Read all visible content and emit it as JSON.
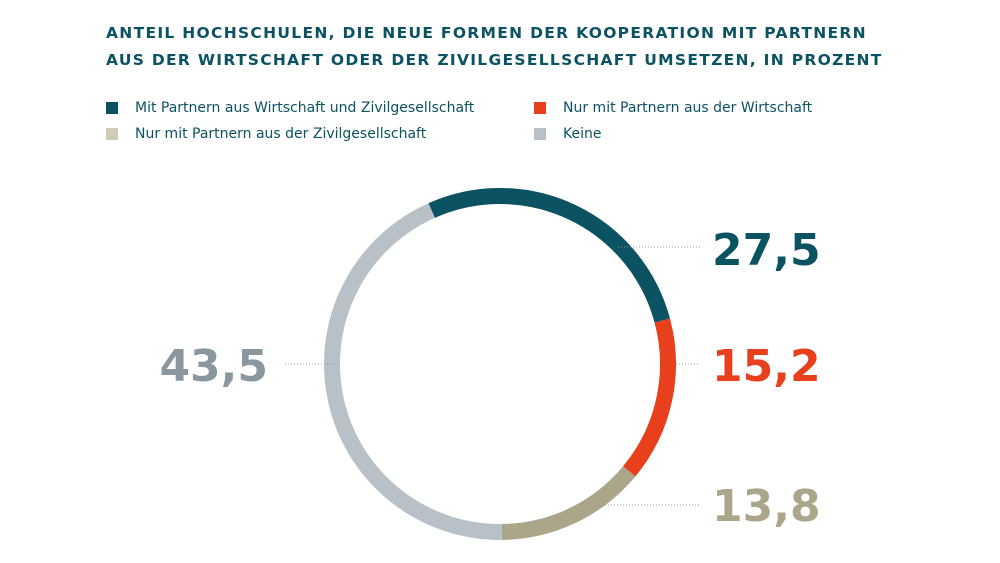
{
  "chart_data": {
    "type": "pie",
    "title": "ANTEIL HOCHSCHULEN, DIE NEUE FORMEN DER KOOPERATION MIT PARTNERN AUS DER WIRTSCHAFT ODER DER ZIVILGESELLSCHAFT UMSETZEN, IN PROZENT",
    "title_lines": [
      "ANTEIL HOCHSCHULEN, DIE NEUE FORMEN DER KOOPERATION MIT PARTNERN",
      "AUS DER WIRTSCHAFT ODER DER ZIVILGESELLSCHAFT UMSETZEN, IN PROZENT"
    ],
    "donut": true,
    "legend_position": "top",
    "series": [
      {
        "name": "Mit Partnern aus Wirtschaft und Zivilgesellschaft",
        "value": 27.5,
        "label": "27,5",
        "color": "#0b5263",
        "legend_color": "#0b5263"
      },
      {
        "name": "Nur mit Partnern aus der Wirtschaft",
        "value": 15.2,
        "label": "15,2",
        "color": "#e8401c",
        "legend_color": "#e8401c"
      },
      {
        "name": "Nur mit Partnern aus der Zivilgesellschaft",
        "value": 13.8,
        "label": "13,8",
        "color": "#aba58a",
        "legend_color": "#d0cab7",
        "label_color": "#aba58a"
      },
      {
        "name": "Keine",
        "value": 43.5,
        "label": "43,5",
        "color": "#b7c1c7",
        "legend_color": "#b7c1c7",
        "label_color": "#8a979f"
      }
    ]
  }
}
